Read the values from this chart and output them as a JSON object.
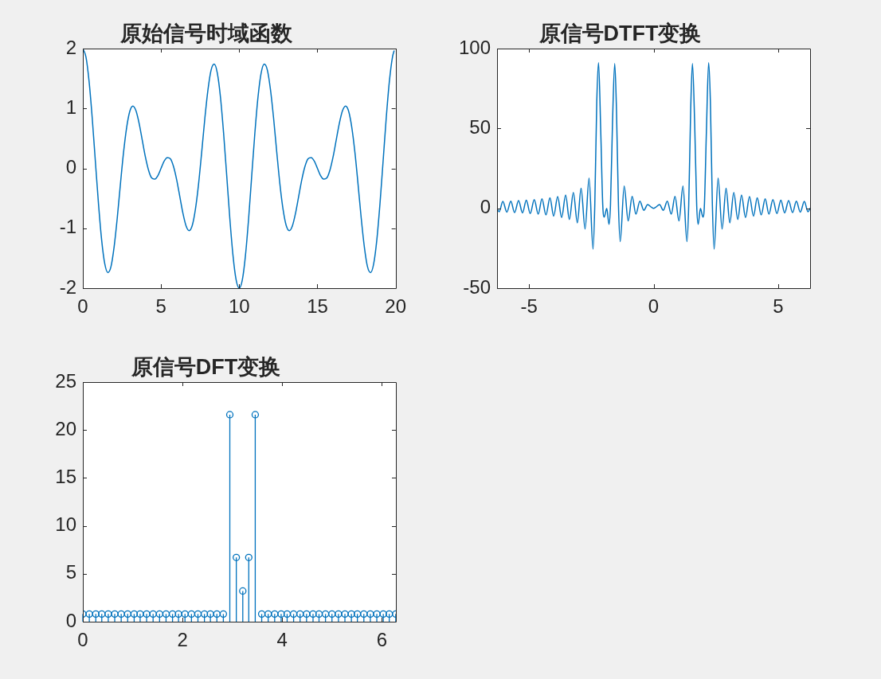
{
  "chart_data": [
    {
      "type": "line",
      "title": "原始信号时域函数",
      "color": "#0072bd",
      "xlim": [
        0,
        20
      ],
      "xticks": [
        0,
        5,
        10,
        15,
        20
      ],
      "ylim": [
        -2,
        2
      ],
      "yticks": [
        -2,
        -1,
        0,
        1,
        2
      ],
      "x": [
        0,
        0.2,
        0.4,
        0.6,
        0.8,
        1,
        1.2,
        1.4,
        1.6,
        1.8,
        2,
        2.2,
        2.4,
        2.6,
        2.8,
        3,
        3.2,
        3.4,
        3.6,
        3.8,
        4,
        4.2,
        4.4,
        4.6,
        4.8,
        5,
        5.2,
        5.4,
        5.6,
        5.8,
        6,
        6.2,
        6.4,
        6.6,
        6.8,
        7,
        7.2,
        7.4,
        7.6,
        7.8,
        8,
        8.2,
        8.4,
        8.6,
        8.8,
        9,
        9.2,
        9.4,
        9.6,
        9.8,
        10,
        10.2,
        10.4,
        10.6,
        10.8,
        11,
        11.2,
        11.4,
        11.6,
        11.8,
        12,
        12.2,
        12.4,
        12.6,
        12.8,
        13,
        13.2,
        13.4,
        13.6,
        13.8,
        14,
        14.2,
        14.4,
        14.6,
        14.8,
        15,
        15.2,
        15.4,
        15.6,
        15.8,
        16,
        16.2,
        16.4,
        16.6,
        16.8,
        17,
        17.2,
        17.4,
        17.6,
        17.8,
        18,
        18.2,
        18.4,
        18.6,
        18.8,
        19,
        19.2,
        19.4,
        19.6,
        19.8,
        19.9
      ],
      "values": [
        2,
        1.86,
        1.45,
        0.84,
        0.12,
        -0.59,
        -1.19,
        -1.59,
        -1.74,
        -1.64,
        -1.31,
        -0.83,
        -0.27,
        0.26,
        0.68,
        0.95,
        1.04,
        0.96,
        0.75,
        0.47,
        0.19,
        -0.03,
        -0.16,
        -0.18,
        -0.12,
        0,
        0.12,
        0.18,
        0.16,
        0.03,
        -0.19,
        -0.47,
        -0.75,
        -0.96,
        -1.04,
        -0.95,
        -0.68,
        -0.26,
        0.27,
        0.83,
        1.31,
        1.64,
        1.74,
        1.59,
        1.19,
        0.59,
        -0.12,
        -0.84,
        -1.45,
        -1.86,
        -2,
        -1.86,
        -1.45,
        -0.84,
        -0.12,
        0.59,
        1.19,
        1.59,
        1.74,
        1.64,
        1.31,
        0.83,
        0.27,
        -0.26,
        -0.68,
        -0.95,
        -1.04,
        -0.96,
        -0.75,
        -0.47,
        -0.19,
        0.03,
        0.16,
        0.18,
        0.12,
        0,
        -0.12,
        -0.18,
        -0.16,
        -0.03,
        0.19,
        0.47,
        0.75,
        0.96,
        1.04,
        0.95,
        0.68,
        0.26,
        -0.27,
        -0.83,
        -1.31,
        -1.64,
        -1.74,
        -1.59,
        -1.19,
        -0.59,
        0.12,
        0.84,
        1.45,
        1.86,
        1.96
      ]
    },
    {
      "type": "line",
      "title": "原信号DTFT变换",
      "color": "#0072bd",
      "xlim": [
        -6.283,
        6.283
      ],
      "xticks": [
        -5,
        0,
        5
      ],
      "ylim": [
        -50,
        100
      ],
      "yticks": [
        -50,
        0,
        50,
        100
      ],
      "x": [
        -6.28,
        -6.2,
        -6.05,
        -5.89,
        -5.73,
        -5.58,
        -5.42,
        -5.26,
        -5.11,
        -4.95,
        -4.79,
        -4.63,
        -4.48,
        -4.32,
        -4.16,
        -4.01,
        -3.85,
        -3.69,
        -3.53,
        -3.38,
        -3.22,
        -3.06,
        -2.91,
        -2.75,
        -2.59,
        -2.43,
        -2.36,
        -2.28,
        -2.21,
        -2.12,
        -2.04,
        -1.98,
        -1.88,
        -1.79,
        -1.73,
        -1.65,
        -1.56,
        -1.49,
        -1.41,
        -1.34,
        -1.18,
        -1.02,
        -0.86,
        -0.71,
        -0.55,
        -0.39,
        -0.24,
        -0.08,
        0,
        0.08,
        0.24,
        0.39,
        0.55,
        0.71,
        0.86,
        1.02,
        1.18,
        1.34,
        1.41,
        1.49,
        1.56,
        1.65,
        1.73,
        1.79,
        1.88,
        1.98,
        2.04,
        2.12,
        2.21,
        2.28,
        2.36,
        2.43,
        2.59,
        2.75,
        2.91,
        3.06,
        3.22,
        3.38,
        3.53,
        3.69,
        3.85,
        4.01,
        4.16,
        4.32,
        4.48,
        4.63,
        4.79,
        4.95,
        5.11,
        5.26,
        5.42,
        5.58,
        5.73,
        5.89,
        6.05,
        6.2,
        6.28
      ],
      "values": [
        0,
        -2.2,
        4.3,
        -2.4,
        4.5,
        -2.7,
        4.8,
        -2.9,
        5.1,
        -3.3,
        5.5,
        -3.7,
        5.9,
        -4.2,
        6.5,
        -4.9,
        7.3,
        -5.8,
        8.3,
        -7,
        9.9,
        -9.1,
        12.6,
        -13,
        18.9,
        -25.6,
        2,
        66.8,
        91.2,
        47.9,
        2,
        -5.5,
        0,
        -10,
        2,
        52.7,
        90.6,
        62,
        2,
        -20.8,
        13.9,
        -7.9,
        7.4,
        -3.7,
        4.4,
        -1.3,
        2.3,
        0.6,
        0,
        0.6,
        2.3,
        -1.3,
        4.4,
        -3.7,
        7.4,
        -7.9,
        13.9,
        -20.8,
        2,
        62,
        90.6,
        52.7,
        2,
        -10,
        0,
        -5.5,
        2,
        47.9,
        91.2,
        66.8,
        2,
        -25.6,
        18.9,
        -13,
        12.6,
        -9.1,
        9.9,
        -7,
        8.3,
        -5.8,
        7.3,
        -4.9,
        6.5,
        -4.2,
        5.9,
        -3.7,
        5.5,
        -3.3,
        5.1,
        -2.9,
        4.8,
        -2.7,
        4.5,
        -2.4,
        4.3,
        -2.2,
        0
      ]
    },
    {
      "type": "lollipop",
      "title": "原信号DFT变换",
      "color": "#0072bd",
      "marker": "circle",
      "xlim": [
        0,
        6.283
      ],
      "xticks": [
        0,
        2,
        4,
        6
      ],
      "ylim": [
        0,
        25
      ],
      "yticks": [
        0,
        5,
        10,
        15,
        20,
        25
      ],
      "x": [
        0,
        0.13,
        0.26,
        0.38,
        0.51,
        0.64,
        0.77,
        0.9,
        1.03,
        1.15,
        1.28,
        1.41,
        1.54,
        1.67,
        1.8,
        1.92,
        2.05,
        2.18,
        2.31,
        2.44,
        2.56,
        2.69,
        2.82,
        2.95,
        3.08,
        3.21,
        3.33,
        3.46,
        3.59,
        3.72,
        3.85,
        3.98,
        4.1,
        4.23,
        4.36,
        4.49,
        4.62,
        4.74,
        4.87,
        5,
        5.13,
        5.26,
        5.39,
        5.51,
        5.64,
        5.77,
        5.9,
        6.03,
        6.15,
        6.28
      ],
      "values": [
        0.8,
        0.8,
        0.8,
        0.8,
        0.8,
        0.8,
        0.8,
        0.8,
        0.8,
        0.8,
        0.8,
        0.8,
        0.8,
        0.8,
        0.8,
        0.8,
        0.8,
        0.8,
        0.8,
        0.8,
        0.8,
        0.8,
        0.8,
        21.6,
        6.7,
        3.2,
        6.7,
        21.6,
        0.8,
        0.8,
        0.8,
        0.8,
        0.8,
        0.8,
        0.8,
        0.8,
        0.8,
        0.8,
        0.8,
        0.8,
        0.8,
        0.8,
        0.8,
        0.8,
        0.8,
        0.8,
        0.8,
        0.8,
        0.8,
        0.8
      ]
    }
  ]
}
